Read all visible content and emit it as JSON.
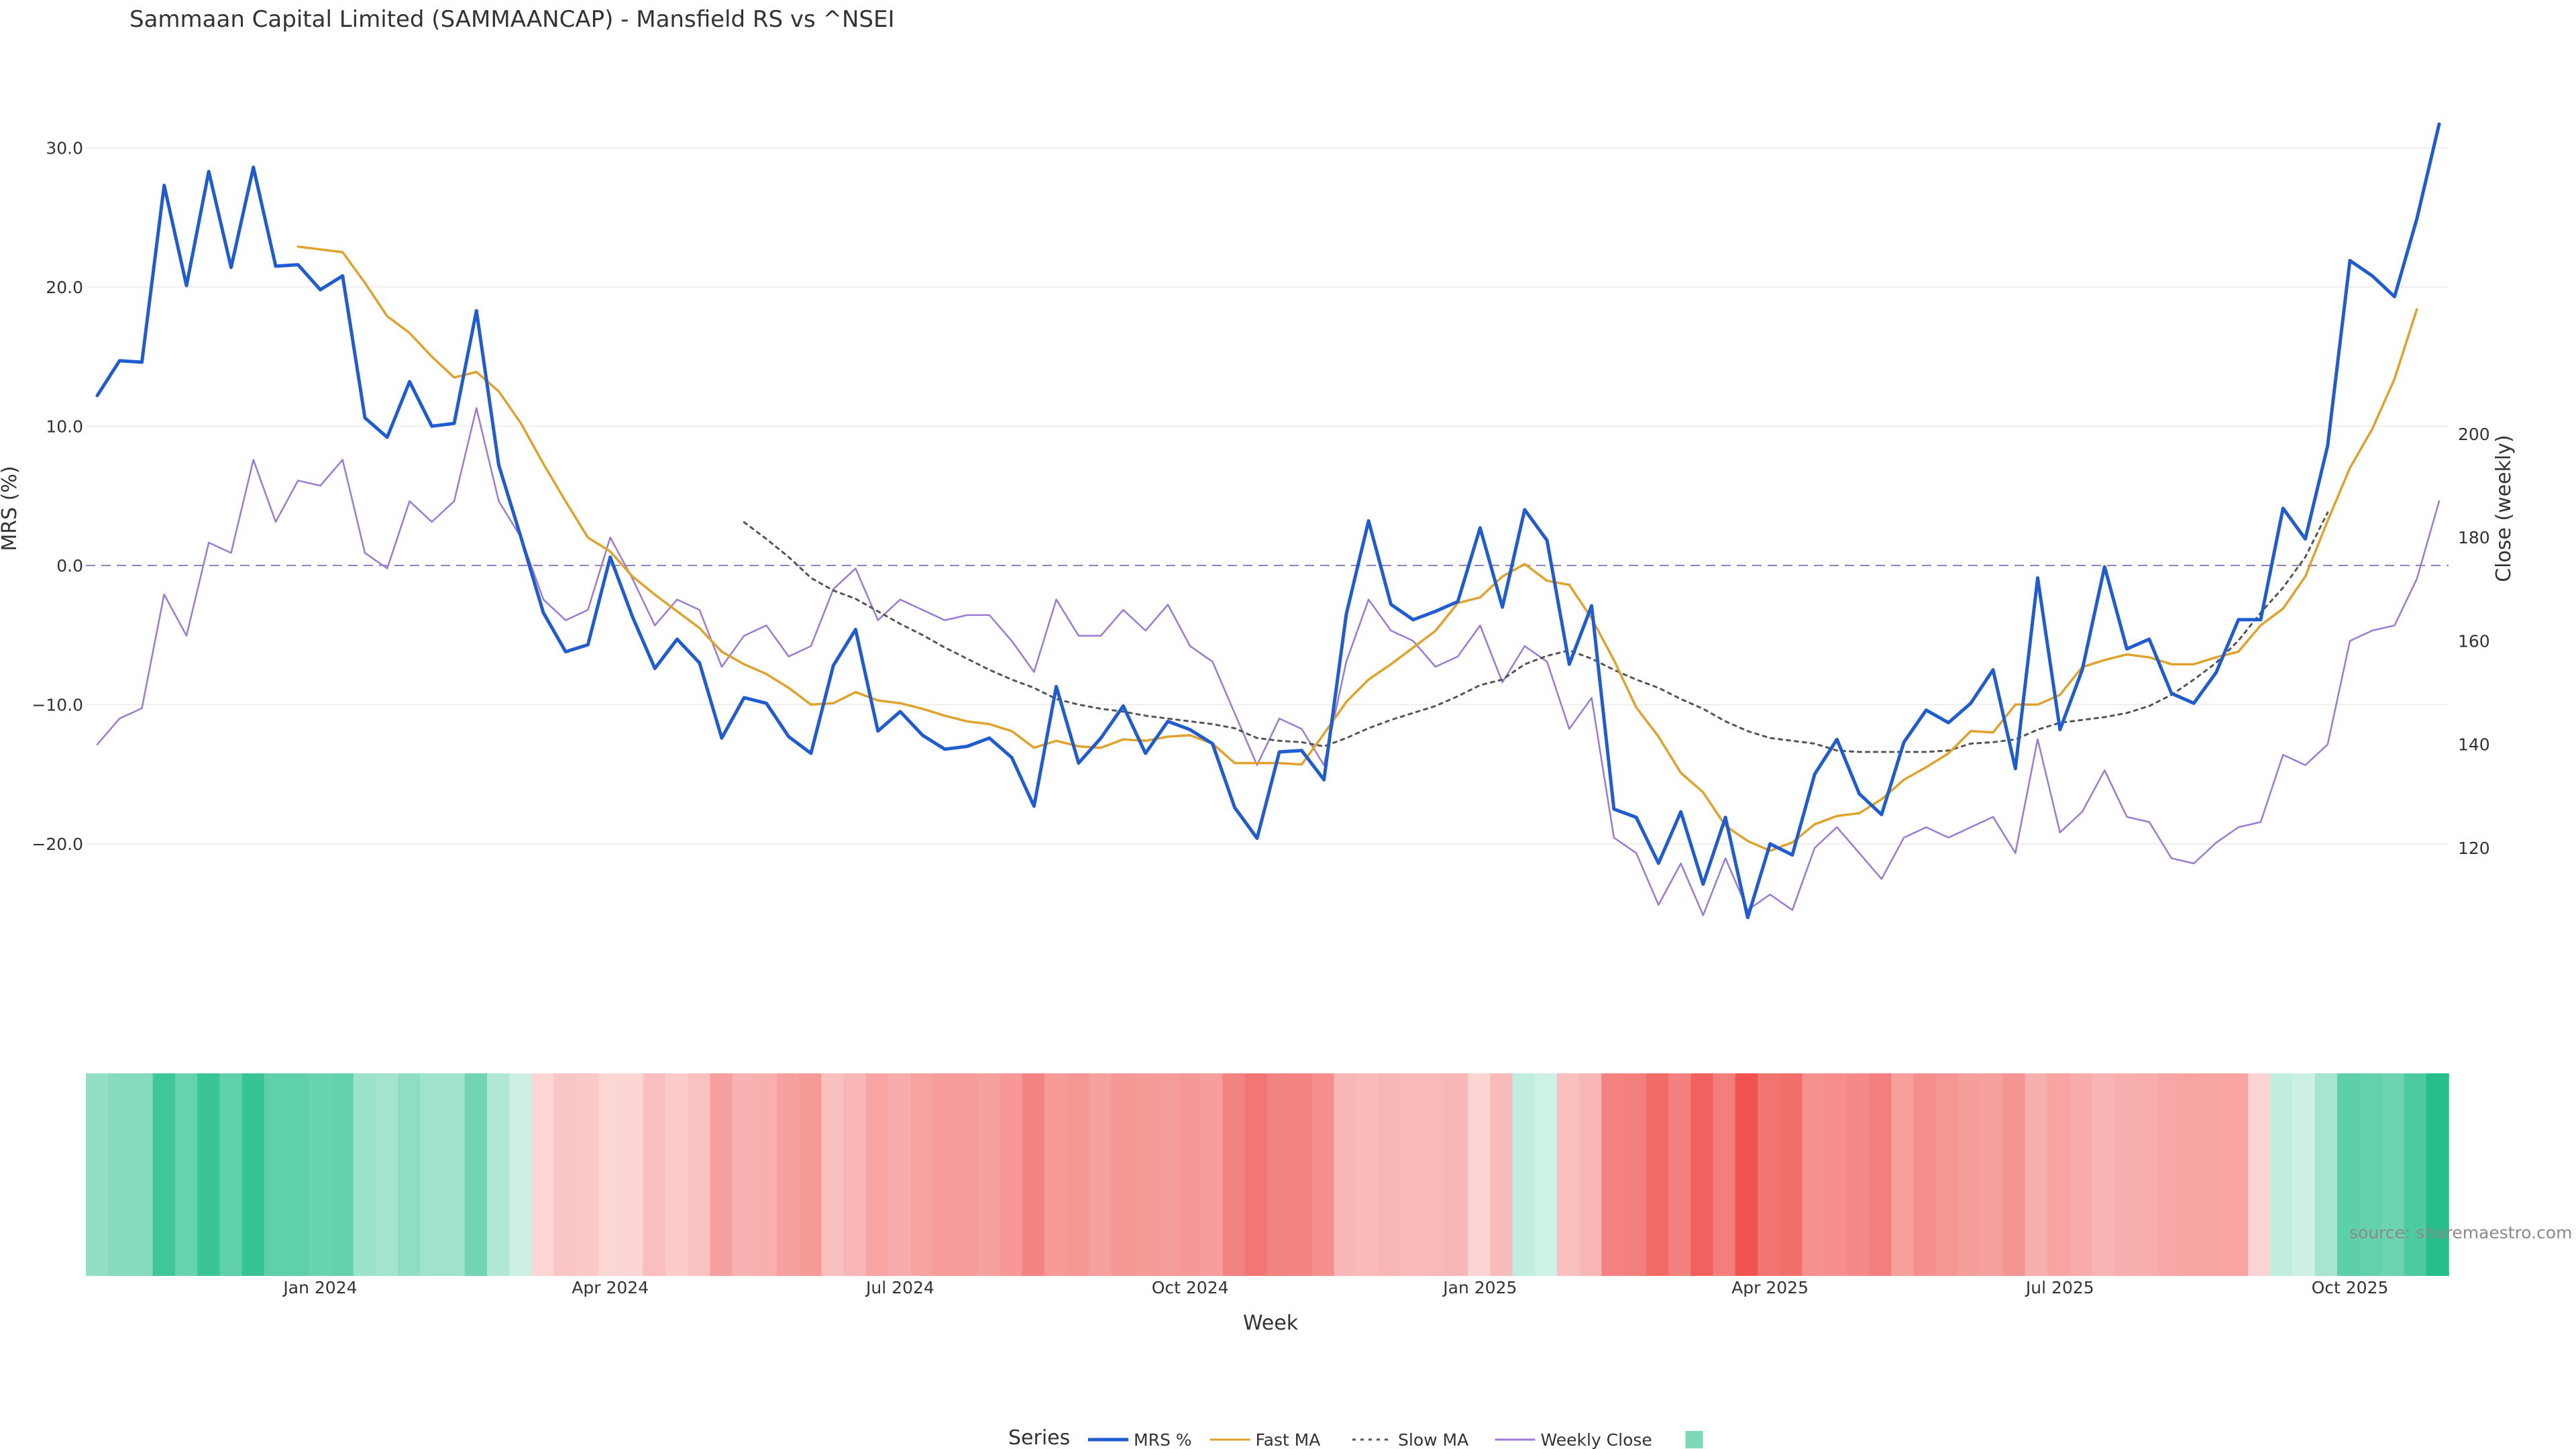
{
  "chart_data": {
    "type": "line",
    "title": "Sammaan Capital Limited (SAMMAANCAP) - Mansfield RS vs ^NSEI",
    "xlabel": "Week",
    "ylabel_left": "MRS (%)",
    "ylabel_right": "Close (weekly)",
    "y_left_range": [
      -25.5,
      31.7
    ],
    "y_right_range": [
      106,
      204
    ],
    "y_left_ticks": [
      {
        "value": 30,
        "label": "30.0"
      },
      {
        "value": 20,
        "label": "20.0"
      },
      {
        "value": 10,
        "label": "10.0"
      },
      {
        "value": 0,
        "label": "0.0"
      },
      {
        "value": -10,
        "label": "−10.0"
      },
      {
        "value": -20,
        "label": "−20.0"
      }
    ],
    "y_right_ticks": [
      {
        "value": 200,
        "label": "200"
      },
      {
        "value": 180,
        "label": "180"
      },
      {
        "value": 160,
        "label": "160"
      },
      {
        "value": 140,
        "label": "140"
      },
      {
        "value": 120,
        "label": "120"
      }
    ],
    "x_ticks": [
      {
        "index": 10,
        "label": "Jan 2024"
      },
      {
        "index": 23,
        "label": "Apr 2024"
      },
      {
        "index": 36,
        "label": "Jul 2024"
      },
      {
        "index": 49,
        "label": "Oct 2024"
      },
      {
        "index": 62,
        "label": "Jan 2025"
      },
      {
        "index": 75,
        "label": "Apr 2025"
      },
      {
        "index": 88,
        "label": "Jul 2025"
      },
      {
        "index": 101,
        "label": "Oct 2025"
      }
    ],
    "reference_line": 0,
    "legend_title": "Series",
    "legend_placement": "bottom-center",
    "series": [
      {
        "name": "MRS %",
        "axis": "left",
        "color": "#1f5bd1",
        "style": "solid",
        "values": [
          12.2,
          14.7,
          14.6,
          27.3,
          20.1,
          28.3,
          21.4,
          28.6,
          21.5,
          21.6,
          19.8,
          20.8,
          10.6,
          9.2,
          13.2,
          10.0,
          10.2,
          18.3,
          7.2,
          2.0,
          -3.4,
          -6.2,
          -5.7,
          0.6,
          -3.7,
          -7.4,
          -5.3,
          -7.0,
          -12.4,
          -9.5,
          -9.9,
          -12.3,
          -13.5,
          -7.2,
          -4.6,
          -11.9,
          -10.5,
          -12.2,
          -13.2,
          -13.0,
          -12.4,
          -13.8,
          -17.3,
          -8.7,
          -14.2,
          -12.4,
          -10.1,
          -13.5,
          -11.2,
          -11.8,
          -12.8,
          -17.4,
          -19.6,
          -13.4,
          -13.3,
          -15.4,
          -3.5,
          3.2,
          -2.8,
          -3.9,
          -3.3,
          -2.6,
          2.7,
          -3.0,
          4.0,
          1.8,
          -7.1,
          -2.9,
          -17.5,
          -18.1,
          -21.4,
          -17.7,
          -22.9,
          -18.1,
          -25.3,
          -20.0,
          -20.8,
          -15.0,
          -12.5,
          -16.4,
          -17.9,
          -12.7,
          -10.4,
          -11.3,
          -9.9,
          -7.5,
          -14.6,
          -0.9,
          -11.8,
          -7.5,
          -0.1,
          -6.0,
          -5.3,
          -9.2,
          -9.9,
          -7.7,
          -3.9,
          -3.9,
          4.1,
          1.9,
          8.6,
          21.9,
          20.8,
          19.3,
          24.9,
          31.7
        ]
      },
      {
        "name": "Fast MA",
        "axis": "left",
        "color": "#e0a22a",
        "style": "solid",
        "start_index": 9,
        "values": [
          22.9,
          22.7,
          22.5,
          20.3,
          17.9,
          16.7,
          15.0,
          13.5,
          13.9,
          12.5,
          10.2,
          7.3,
          4.6,
          2.0,
          1.0,
          -0.8,
          -2.1,
          -3.3,
          -4.5,
          -6.2,
          -7.1,
          -7.8,
          -8.8,
          -10.0,
          -9.9,
          -9.1,
          -9.7,
          -9.9,
          -10.3,
          -10.8,
          -11.2,
          -11.4,
          -11.9,
          -13.1,
          -12.6,
          -13.0,
          -13.1,
          -12.5,
          -12.6,
          -12.3,
          -12.2,
          -12.8,
          -14.2,
          -14.2,
          -14.2,
          -14.3,
          -12.1,
          -9.8,
          -8.2,
          -7.1,
          -5.9,
          -4.7,
          -2.7,
          -2.3,
          -0.8,
          0.1,
          -1.1,
          -1.4,
          -3.8,
          -6.8,
          -10.2,
          -12.3,
          -14.9,
          -16.3,
          -18.7,
          -19.8,
          -20.5,
          -19.9,
          -18.6,
          -18.0,
          -17.8,
          -16.8,
          -15.4,
          -14.5,
          -13.5,
          -11.9,
          -12.0,
          -10.0,
          -10.0,
          -9.3,
          -7.3,
          -6.8,
          -6.4,
          -6.6,
          -7.1,
          -7.1,
          -6.6,
          -6.2,
          -4.3,
          -3.1,
          -0.8,
          3.2,
          7.0,
          9.8,
          13.4,
          18.4
        ]
      },
      {
        "name": "Slow MA",
        "axis": "left",
        "color": "#555555",
        "style": "dotted",
        "start_index": 29,
        "values": [
          3.1,
          1.9,
          0.6,
          -0.9,
          -1.8,
          -2.4,
          -3.3,
          -4.2,
          -5.0,
          -5.9,
          -6.7,
          -7.5,
          -8.2,
          -8.8,
          -9.6,
          -10.0,
          -10.3,
          -10.5,
          -10.8,
          -11.0,
          -11.2,
          -11.4,
          -11.7,
          -12.4,
          -12.6,
          -12.7,
          -13.0,
          -12.4,
          -11.7,
          -11.1,
          -10.6,
          -10.1,
          -9.4,
          -8.6,
          -8.2,
          -7.1,
          -6.5,
          -6.1,
          -6.7,
          -7.5,
          -8.2,
          -8.8,
          -9.6,
          -10.3,
          -11.2,
          -11.9,
          -12.4,
          -12.6,
          -12.8,
          -13.3,
          -13.4,
          -13.4,
          -13.4,
          -13.4,
          -13.3,
          -12.8,
          -12.7,
          -12.5,
          -11.8,
          -11.3,
          -11.1,
          -10.9,
          -10.6,
          -10.1,
          -9.3,
          -8.2,
          -7.0,
          -5.4,
          -3.4,
          -1.6,
          0.6,
          3.8
        ]
      },
      {
        "name": "Weekly Close",
        "axis": "right",
        "color": "#9b7ad6",
        "style": "solid",
        "values": [
          140,
          145,
          147,
          169,
          161,
          179,
          177,
          195,
          183,
          191,
          190,
          195,
          177,
          174,
          187,
          183,
          187,
          205,
          187,
          180,
          168,
          164,
          166,
          180,
          172,
          163,
          168,
          166,
          155,
          161,
          163,
          157,
          159,
          170,
          174,
          164,
          168,
          166,
          164,
          165,
          165,
          160,
          154,
          168,
          161,
          161,
          166,
          162,
          167,
          159,
          156,
          146,
          136,
          145,
          143,
          136,
          156,
          168,
          162,
          160,
          155,
          157,
          163,
          152,
          159,
          156,
          143,
          149,
          122,
          119,
          109,
          117,
          107,
          118,
          108,
          111,
          108,
          120,
          124,
          119,
          114,
          122,
          124,
          122,
          124,
          126,
          119,
          141,
          123,
          127,
          135,
          126,
          125,
          118,
          117,
          121,
          124,
          125,
          138,
          136,
          140,
          160,
          162,
          163,
          172,
          187
        ]
      }
    ],
    "heatmap_strip": {
      "colorscale_low": "#ef5350",
      "colorscale_mid": "#ffffff",
      "colorscale_high": "#26bf8c",
      "range": [
        -25.5,
        31.7
      ],
      "cells": [
        12.2,
        14.7,
        14.6,
        27.3,
        20.1,
        28.3,
        21.4,
        28.6,
        21.5,
        21.6,
        19.8,
        20.8,
        10.6,
        9.2,
        13.2,
        10.0,
        10.2,
        18.3,
        7.2,
        2.0,
        -3.4,
        -6.2,
        -5.7,
        -3.4,
        -3.7,
        -7.4,
        -5.3,
        -7.0,
        -12.4,
        -9.5,
        -9.9,
        -12.3,
        -13.5,
        -7.2,
        -8.6,
        -11.9,
        -10.5,
        -12.2,
        -13.2,
        -13.0,
        -12.4,
        -13.8,
        -17.3,
        -13.7,
        -14.2,
        -12.4,
        -14.1,
        -13.5,
        -13.2,
        -13.8,
        -12.8,
        -17.4,
        -19.6,
        -17.4,
        -17.3,
        -15.4,
        -8.5,
        -8.2,
        -8.8,
        -7.9,
        -8.3,
        -8.6,
        -3.7,
        -8.0,
        4.0,
        1.8,
        -7.1,
        -8.9,
        -17.5,
        -18.1,
        -21.4,
        -17.7,
        -22.9,
        -18.1,
        -25.3,
        -20.0,
        -20.8,
        -15.0,
        -15.5,
        -16.4,
        -17.9,
        -12.7,
        -15.4,
        -14.3,
        -12.9,
        -12.5,
        -14.6,
        -9.9,
        -11.8,
        -10.5,
        -9.1,
        -10.0,
        -10.3,
        -11.2,
        -11.9,
        -11.7,
        -11.9,
        -3.9,
        4.1,
        1.9,
        8.6,
        21.9,
        20.8,
        19.3,
        24.9,
        31.7
      ]
    }
  },
  "source_label": "source: sharemaestro.com"
}
